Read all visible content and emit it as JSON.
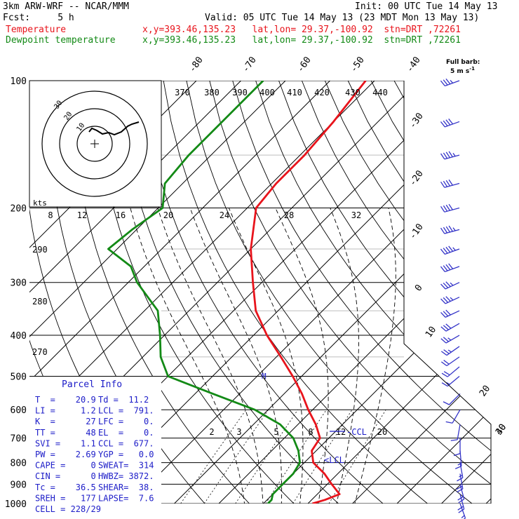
{
  "header": {
    "model": "3km ARW-WRF -- NCAR/MMM",
    "init": "Init: 00 UTC Tue 14 May 13",
    "fcst": "Fcst:     5 h",
    "valid": "Valid: 05 UTC Tue 14 May 13 (23 MDT Mon 13 May 13)",
    "temp_label": "Temperature",
    "temp_loc": "x,y=393.46,135.23   lat,lon= 29.37,-100.92  stn=DRT ,72261",
    "dew_label": "Dewpoint temperature",
    "dew_loc": "x,y=393.46,135.23   lat,lon= 29.37,-100.92  stn=DRT ,72261"
  },
  "colors": {
    "temperature": "#e8141c",
    "dewpoint": "#138a16",
    "parcel": "#1c1cc8",
    "wind": "#3434c8"
  },
  "barb": {
    "title": "Full barb:",
    "value": "5 m s",
    "exp": "-1"
  },
  "chart_data": {
    "type": "line",
    "pressure_levels": [
      100,
      200,
      300,
      400,
      500,
      600,
      700,
      800,
      900,
      1000
    ],
    "isotherm_labels_left": [
      "-80",
      "-70",
      "-60",
      "-50",
      "-40"
    ],
    "isotherm_labels_right": [
      "-30",
      "-20",
      "-10",
      "0",
      "10",
      "20",
      "30",
      "40"
    ],
    "theta_labels": [
      "370",
      "380",
      "390",
      "400",
      "410",
      "420",
      "430",
      "440"
    ],
    "theta_labels_left": [
      "290",
      "280",
      "270"
    ],
    "mixing_ratio_labels": [
      "2",
      "3",
      "5",
      "8",
      "12",
      "20"
    ],
    "hodograph_speed_labels": [
      "8",
      "12",
      "16",
      "20",
      "24",
      "28",
      "32"
    ],
    "hodograph_unit": "kts",
    "hodograph_ring_labels": [
      "30",
      "20",
      "10"
    ],
    "ccl_label": "CCL",
    "lcl_label": "<LCL",
    "marker_label": "M",
    "series": [
      {
        "name": "Temperature",
        "points": [
          [
            100,
            -62
          ],
          [
            125,
            -60
          ],
          [
            150,
            -59
          ],
          [
            175,
            -59
          ],
          [
            200,
            -58
          ],
          [
            250,
            -50
          ],
          [
            300,
            -42
          ],
          [
            350,
            -35
          ],
          [
            400,
            -27
          ],
          [
            450,
            -19
          ],
          [
            500,
            -12
          ],
          [
            550,
            -6
          ],
          [
            600,
            -1
          ],
          [
            650,
            4
          ],
          [
            700,
            8
          ],
          [
            750,
            9
          ],
          [
            800,
            12
          ],
          [
            850,
            17
          ],
          [
            900,
            21
          ],
          [
            950,
            25
          ],
          [
            980,
            23
          ],
          [
            1000,
            21
          ]
        ]
      },
      {
        "name": "Dewpoint temperature",
        "points": [
          [
            100,
            -85
          ],
          [
            150,
            -85
          ],
          [
            175,
            -84
          ],
          [
            200,
            -79
          ],
          [
            225,
            -81
          ],
          [
            250,
            -82
          ],
          [
            275,
            -73
          ],
          [
            300,
            -68
          ],
          [
            350,
            -57
          ],
          [
            400,
            -51
          ],
          [
            450,
            -46
          ],
          [
            500,
            -40
          ],
          [
            550,
            -26
          ],
          [
            600,
            -13
          ],
          [
            650,
            -4
          ],
          [
            700,
            2
          ],
          [
            750,
            6
          ],
          [
            800,
            9
          ],
          [
            850,
            10
          ],
          [
            900,
            10
          ],
          [
            950,
            10
          ],
          [
            980,
            11
          ],
          [
            1000,
            11
          ]
        ]
      }
    ]
  },
  "parcel": {
    "title": "Parcel Info",
    "rows": [
      [
        "T  =    20.9",
        "Td =  11.2"
      ],
      [
        "LI =     1.2",
        "LCL =  791."
      ],
      [
        "K  =      27",
        "LFC =    0."
      ],
      [
        "TT =      48",
        "EL  =    0."
      ],
      [
        "SVI =    1.1",
        "CCL =  677."
      ],
      [
        "PW =    2.69",
        "YGP =   0.0"
      ],
      [
        "CAPE =     0",
        "SWEAT=  314"
      ],
      [
        "CIN =      0",
        "HWBZ= 3872."
      ],
      [
        "Tc =    36.5",
        "SHEAR=  38."
      ],
      [
        "SREH =   177",
        "LAPSE=  7.6"
      ],
      [
        "CELL = 228/29",
        ""
      ]
    ]
  },
  "winds": [
    {
      "p": 100,
      "spd": 35,
      "dir": 250
    },
    {
      "p": 125,
      "spd": 40,
      "dir": 250
    },
    {
      "p": 150,
      "spd": 45,
      "dir": 255
    },
    {
      "p": 175,
      "spd": 40,
      "dir": 255
    },
    {
      "p": 200,
      "spd": 40,
      "dir": 255
    },
    {
      "p": 225,
      "spd": 45,
      "dir": 255
    },
    {
      "p": 250,
      "spd": 45,
      "dir": 250
    },
    {
      "p": 275,
      "spd": 40,
      "dir": 250
    },
    {
      "p": 300,
      "spd": 35,
      "dir": 245
    },
    {
      "p": 325,
      "spd": 35,
      "dir": 245
    },
    {
      "p": 350,
      "spd": 30,
      "dir": 245
    },
    {
      "p": 375,
      "spd": 30,
      "dir": 240
    },
    {
      "p": 400,
      "spd": 25,
      "dir": 240
    },
    {
      "p": 425,
      "spd": 25,
      "dir": 235
    },
    {
      "p": 450,
      "spd": 20,
      "dir": 235
    },
    {
      "p": 475,
      "spd": 20,
      "dir": 230
    },
    {
      "p": 500,
      "spd": 15,
      "dir": 230
    },
    {
      "p": 550,
      "spd": 10,
      "dir": 225
    },
    {
      "p": 600,
      "spd": 10,
      "dir": 210
    },
    {
      "p": 650,
      "spd": 10,
      "dir": 190
    },
    {
      "p": 700,
      "spd": 10,
      "dir": 180
    },
    {
      "p": 750,
      "spd": 15,
      "dir": 175
    },
    {
      "p": 800,
      "spd": 15,
      "dir": 170
    },
    {
      "p": 850,
      "spd": 20,
      "dir": 170
    },
    {
      "p": 900,
      "spd": 20,
      "dir": 165
    },
    {
      "p": 950,
      "spd": 20,
      "dir": 165
    },
    {
      "p": 1000,
      "spd": 15,
      "dir": 160
    }
  ]
}
